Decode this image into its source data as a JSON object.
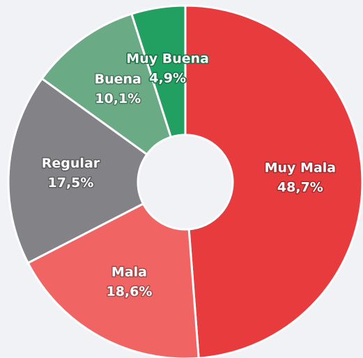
{
  "chart_data": {
    "type": "donut",
    "categories": [
      "Muy Mala",
      "Mala",
      "Regular",
      "Buena",
      "Muy Buena"
    ],
    "values": [
      48.7,
      18.6,
      17.5,
      10.1,
      4.9
    ],
    "value_labels": [
      "48,7%",
      "18,6%",
      "17,5%",
      "10,1%",
      "4,9%"
    ],
    "colors": [
      "#e83b3d",
      "#f06464",
      "#838287",
      "#6aab85",
      "#22a061"
    ]
  }
}
